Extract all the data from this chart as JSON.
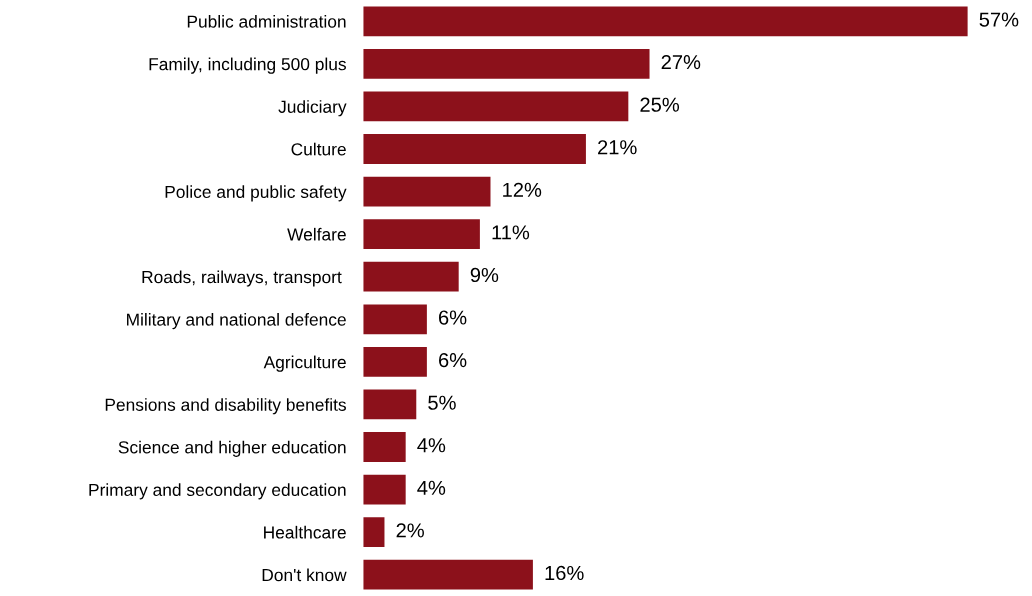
{
  "chart_data": {
    "type": "bar",
    "orientation": "horizontal",
    "categories": [
      "Public administration",
      "Family, including 500 plus",
      "Judiciary",
      "Culture",
      "Police and public safety",
      "Welfare",
      "Roads, railways, transport ",
      "Military and national defence",
      "Agriculture",
      "Pensions and disability benefits",
      "Science and higher education",
      "Primary and secondary education",
      "Healthcare",
      "Don't know"
    ],
    "values": [
      57,
      27,
      25,
      21,
      12,
      11,
      9,
      6,
      6,
      5,
      4,
      4,
      2,
      16
    ],
    "value_labels": [
      "57%",
      "27%",
      "25%",
      "21%",
      "12%",
      "11%",
      "9%",
      "6%",
      "6%",
      "5%",
      "4%",
      "4%",
      "2%",
      "16%"
    ],
    "color": "#8c111b",
    "grid": false,
    "legend": false
  }
}
